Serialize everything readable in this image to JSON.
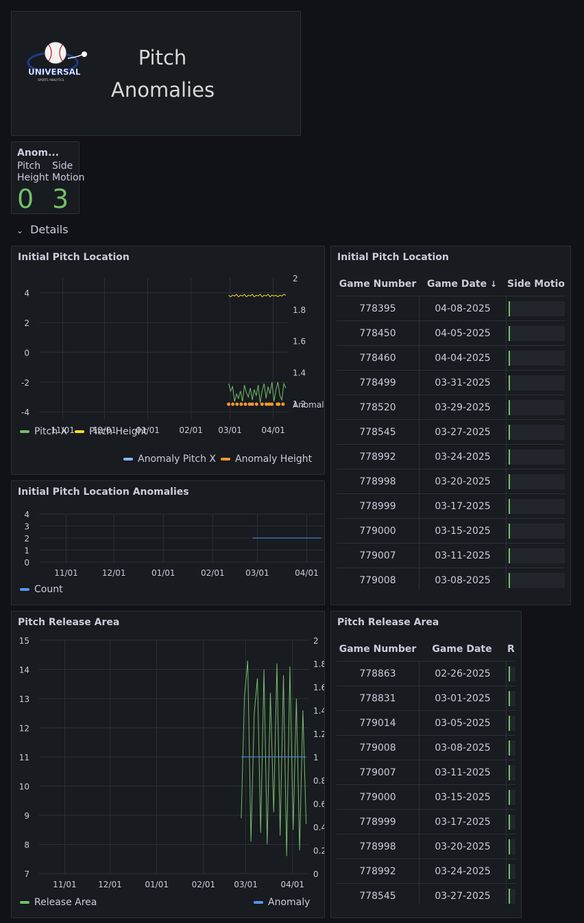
{
  "header": {
    "title_line1": "Pitch",
    "title_line2": "Anomalies",
    "logo_text": "UNIVERSAL",
    "logo_sub": "SPORTS ANALYTICS"
  },
  "stat": {
    "title": "Anom...",
    "items": [
      {
        "label1": "Pitch",
        "label2": "Height",
        "value": "0"
      },
      {
        "label1": "Side",
        "label2": "Motion",
        "value": "3"
      }
    ],
    "value_color": "#73bf69"
  },
  "details": {
    "label": "Details"
  },
  "colors": {
    "pitch_x": "#73bf69",
    "pitch_height": "#fade2a",
    "anomaly_x": "#8ab8ff",
    "anomaly_height": "#ff9830",
    "count": "#5794f2",
    "release": "#73bf69",
    "anomaly": "#5794f2"
  },
  "panels": {
    "loc_chart": {
      "title": "Initial Pitch Location",
      "legend": [
        "Pitch X",
        "Pitch Height",
        "Anomaly Pitch X",
        "Anomaly Height"
      ],
      "y_ticks": [
        "4",
        "2",
        "0",
        "-2",
        "-4"
      ],
      "y2_ticks": [
        "2",
        "1.8",
        "1.6",
        "1.4",
        "1.2",
        "Anomaly"
      ],
      "x_ticks": [
        "11/01",
        "12/01",
        "01/01",
        "02/01",
        "03/01",
        "04/01"
      ]
    },
    "loc_table": {
      "title": "Initial Pitch Location",
      "headers": [
        "Game Number",
        "Game Date",
        "Side Motio"
      ],
      "sort_icon": "↓",
      "rows": [
        [
          "778395",
          "04-08-2025"
        ],
        [
          "778450",
          "04-05-2025"
        ],
        [
          "778460",
          "04-04-2025"
        ],
        [
          "778499",
          "03-31-2025"
        ],
        [
          "778520",
          "03-29-2025"
        ],
        [
          "778545",
          "03-27-2025"
        ],
        [
          "778992",
          "03-24-2025"
        ],
        [
          "778998",
          "03-20-2025"
        ],
        [
          "778999",
          "03-17-2025"
        ],
        [
          "779000",
          "03-15-2025"
        ],
        [
          "779007",
          "03-11-2025"
        ],
        [
          "779008",
          "03-08-2025"
        ]
      ]
    },
    "anom_chart": {
      "title": "Initial Pitch Location Anomalies",
      "legend": [
        "Count"
      ],
      "y_ticks": [
        "4",
        "3",
        "2",
        "1",
        "0"
      ],
      "x_ticks": [
        "11/01",
        "12/01",
        "01/01",
        "02/01",
        "03/01",
        "04/01"
      ]
    },
    "release_chart": {
      "title": "Pitch Release Area",
      "legend": [
        "Release Area",
        "Anomaly"
      ],
      "y_ticks": [
        "15",
        "14",
        "13",
        "12",
        "11",
        "10",
        "9",
        "8",
        "7"
      ],
      "y2_ticks": [
        "2",
        "1.8",
        "1.6",
        "1.4",
        "1.2",
        "1",
        "0.8",
        "0.6",
        "0.4",
        "0.2",
        "0"
      ],
      "x_ticks": [
        "11/01",
        "12/01",
        "01/01",
        "02/01",
        "03/01",
        "04/01"
      ]
    },
    "release_table": {
      "title": "Pitch Release Area",
      "headers": [
        "Game Number",
        "Game Date",
        "R"
      ],
      "rows": [
        [
          "778863",
          "02-26-2025"
        ],
        [
          "778831",
          "03-01-2025"
        ],
        [
          "779014",
          "03-05-2025"
        ],
        [
          "779008",
          "03-08-2025"
        ],
        [
          "779007",
          "03-11-2025"
        ],
        [
          "779000",
          "03-15-2025"
        ],
        [
          "778999",
          "03-17-2025"
        ],
        [
          "778998",
          "03-20-2025"
        ],
        [
          "778992",
          "03-24-2025"
        ],
        [
          "778545",
          "03-27-2025"
        ]
      ]
    }
  },
  "chart_data": [
    {
      "type": "line",
      "title": "Initial Pitch Location",
      "x_range": [
        "2024-10-15",
        "2025-04-12"
      ],
      "ylim": [
        -4.5,
        5
      ],
      "y2lim": [
        1.1,
        2
      ],
      "series": [
        {
          "name": "Pitch X",
          "axis": "left",
          "x_start": "2025-02-28",
          "x_end": "2025-04-10",
          "values": [
            -2.1,
            -2.6,
            -2.3,
            -3.3,
            -2.8,
            -3.1,
            -2.6,
            -3.3,
            -2.2,
            -2.7,
            -3.0,
            -2.4,
            -3.2,
            -2.5,
            -2.9,
            -2.2,
            -3.4,
            -2.6,
            -2.1,
            -3.1,
            -2.3,
            -2.8,
            -2.0,
            -3.3,
            -2.5,
            -2.0,
            -2.9,
            -3.2,
            -2.1,
            -2.4
          ]
        },
        {
          "name": "Pitch Height",
          "axis": "right",
          "x_start": "2025-02-28",
          "x_end": "2025-04-10",
          "values": [
            1.89,
            1.88,
            1.89,
            1.885,
            1.895,
            1.88,
            1.89,
            1.885,
            1.895,
            1.88,
            1.89,
            1.885,
            1.895,
            1.88,
            1.89,
            1.885,
            1.895,
            1.88,
            1.89,
            1.885,
            1.895,
            1.88,
            1.89,
            1.885,
            1.89,
            1.88,
            1.89,
            1.885,
            1.895,
            1.89
          ]
        },
        {
          "name": "Anomaly Height",
          "axis": "right",
          "points": [
            "2025-02-28",
            "2025-03-03",
            "2025-03-06",
            "2025-03-09",
            "2025-03-12",
            "2025-03-15",
            "2025-03-17",
            "2025-03-20",
            "2025-03-24",
            "2025-03-27",
            "2025-03-29",
            "2025-03-31",
            "2025-04-04",
            "2025-04-05",
            "2025-04-08"
          ],
          "value": "Anomaly"
        }
      ]
    },
    {
      "type": "line",
      "title": "Initial Pitch Location Anomalies",
      "x_range": [
        "2024-10-15",
        "2025-04-12"
      ],
      "ylim": [
        0,
        4
      ],
      "series": [
        {
          "name": "Count",
          "x_start": "2025-02-26",
          "x_end": "2025-04-10",
          "values": [
            2,
            2
          ]
        }
      ]
    },
    {
      "type": "line",
      "title": "Pitch Release Area",
      "x_range": [
        "2024-10-15",
        "2025-04-12"
      ],
      "ylim": [
        7,
        15
      ],
      "y2lim": [
        0,
        2
      ],
      "series": [
        {
          "name": "Release Area",
          "axis": "left",
          "x_start": "2025-02-26",
          "x_end": "2025-04-10",
          "values": [
            8.9,
            13.1,
            14.3,
            8.1,
            12.5,
            13.7,
            8.4,
            14.0,
            8.0,
            13.2,
            9.1,
            14.2,
            8.3,
            13.8,
            7.6,
            14.1,
            8.5,
            13.0,
            7.8,
            12.6,
            8.7
          ]
        },
        {
          "name": "Anomaly",
          "axis": "right",
          "x_start": "2025-02-26",
          "x_end": "2025-04-10",
          "values": [
            1,
            1
          ]
        }
      ]
    }
  ]
}
